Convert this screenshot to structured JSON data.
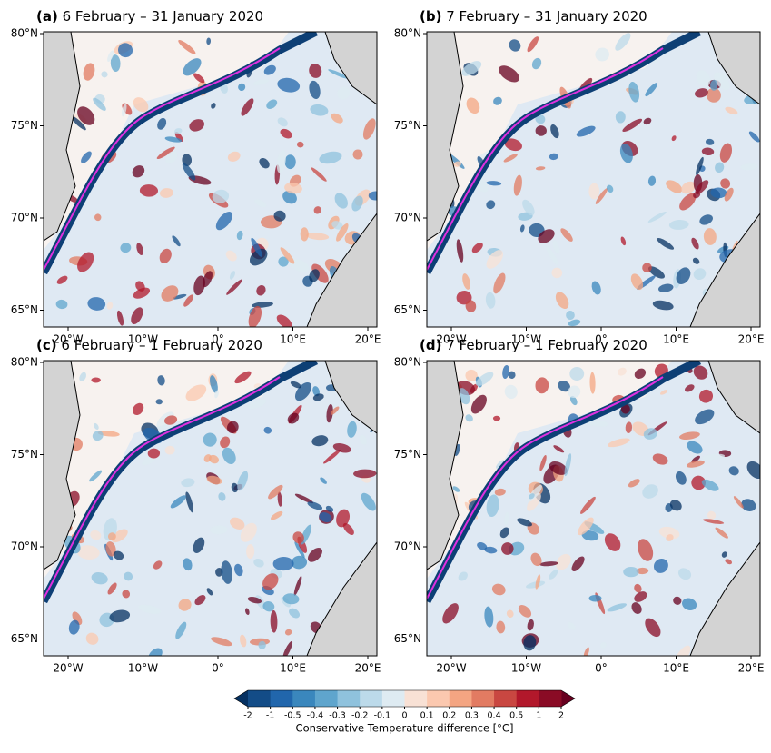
{
  "panels": [
    {
      "label": "(a)",
      "title": "6 February – 31 January 2020"
    },
    {
      "label": "(b)",
      "title": "7 February – 31 January 2020"
    },
    {
      "label": "(c)",
      "title": "6 February – 1 February 2020"
    },
    {
      "label": "(d)",
      "title": "7 February – 1 February 2020"
    }
  ],
  "x_ticks": [
    "20°W",
    "10°W",
    "0°",
    "10°E",
    "20°E"
  ],
  "y_ticks": [
    "80°N",
    "75°N",
    "70°N",
    "65°N"
  ],
  "colorbar": {
    "ticks": [
      "-2",
      "-1",
      "-0.5",
      "-0.4",
      "-0.3",
      "-0.2",
      "-0.1",
      "0",
      "0.1",
      "0.2",
      "0.3",
      "0.4",
      "0.5",
      "1",
      "2"
    ],
    "label": "Conservative Temperature difference [°C]",
    "colors": [
      "#053061",
      "#134c87",
      "#2166ac",
      "#3a87bd",
      "#5fa5cd",
      "#8fc2dd",
      "#bcdaea",
      "#deebf2",
      "#f8e1d5",
      "#fbc8af",
      "#f4a582",
      "#e27b62",
      "#c94741",
      "#b2182b",
      "#8a0b25",
      "#67001f"
    ]
  }
}
